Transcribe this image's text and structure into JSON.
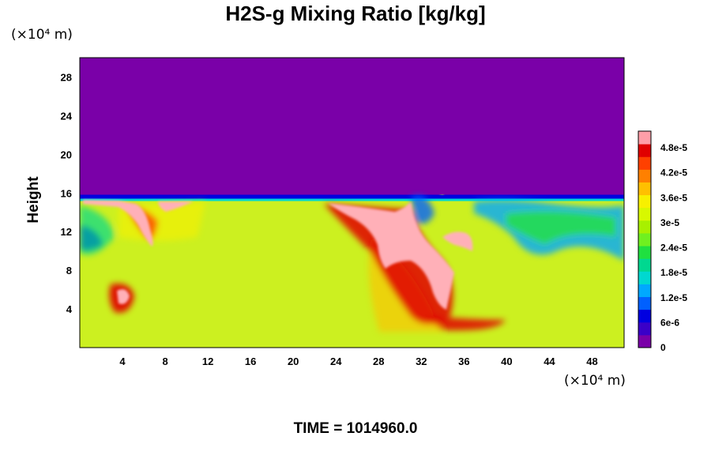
{
  "chart_data": {
    "type": "heatmap",
    "title": "H2S-g Mixing Ratio [kg/kg]",
    "ylabel": "Height",
    "x_unit_label": "(×10⁴ m)",
    "y_unit_label": "(×10⁴ m)",
    "footer": "TIME = 1014960.0",
    "xlim": [
      0,
      51
    ],
    "ylim": [
      0,
      30
    ],
    "x_ticks": [
      "4",
      "8",
      "12",
      "16",
      "20",
      "24",
      "28",
      "32",
      "36",
      "40",
      "44",
      "48"
    ],
    "x_tick_values": [
      4,
      8,
      12,
      16,
      20,
      24,
      28,
      32,
      36,
      40,
      44,
      48
    ],
    "y_ticks": [
      "4",
      "8",
      "12",
      "16",
      "20",
      "24",
      "28"
    ],
    "y_tick_values": [
      4,
      8,
      12,
      16,
      20,
      24,
      28
    ],
    "colorbar": {
      "range": [
        0,
        5.2e-05
      ],
      "tick_labels": [
        "0",
        "6e-6",
        "1.2e-5",
        "1.8e-5",
        "2.4e-5",
        "3e-5",
        "3.6e-5",
        "4.2e-5",
        "4.8e-5"
      ],
      "tick_values": [
        0,
        6e-06,
        1.2e-05,
        1.8e-05,
        2.4e-05,
        3e-05,
        3.6e-05,
        4.2e-05,
        4.8e-05
      ],
      "colors": [
        "#7a00a8",
        "#3a00c8",
        "#0000e0",
        "#0060ff",
        "#00a8ff",
        "#00d8d0",
        "#00d890",
        "#20e040",
        "#70f020",
        "#a8f000",
        "#d8f800",
        "#f8f000",
        "#ffc000",
        "#ff8000",
        "#ff4000",
        "#e00000",
        "#ff9ea8"
      ]
    },
    "regions": {
      "background_above_z16": "#7a00a8",
      "bulk_below_z16": "#ccf020",
      "saturated_patches": "#ffb0b8"
    }
  }
}
